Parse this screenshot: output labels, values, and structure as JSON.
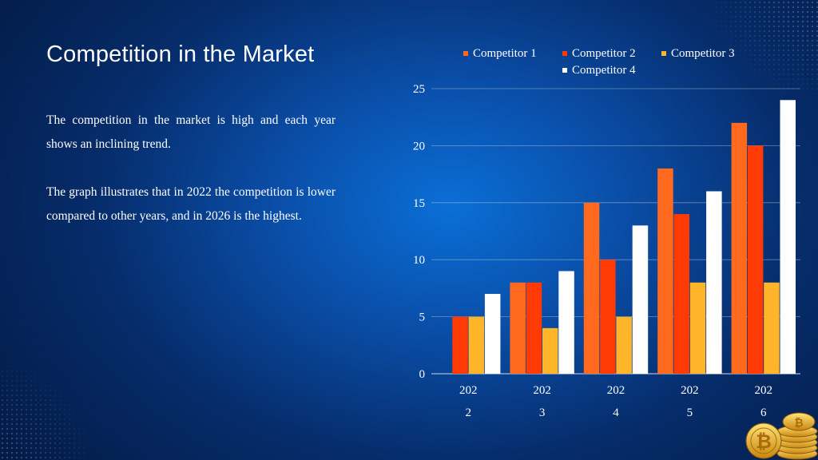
{
  "slide": {
    "title": "Competition in the Market",
    "paragraphs": [
      "The competition in the market is high and each year shows an inclining trend.",
      "The graph illustrates that in 2022 the competition is lower compared to other years, and in 2026 is the highest."
    ]
  },
  "colors": {
    "competitor_1": "#ff6a1f",
    "competitor_2": "#ff3a05",
    "competitor_3": "#ffb52a",
    "competitor_4": "#ffffff",
    "gridline": "#b9c8dc",
    "text": "#ffffff"
  },
  "decor": {
    "coins_icon": "bitcoin-coin-stack-icon"
  },
  "chart_data": {
    "type": "bar",
    "title": "",
    "xlabel": "",
    "ylabel": "",
    "categories": [
      "2022",
      "2023",
      "2024",
      "2025",
      "2026"
    ],
    "ylim": [
      0,
      25
    ],
    "yticks": [
      0,
      5,
      10,
      15,
      20,
      25
    ],
    "grid": true,
    "legend_position": "top",
    "series": [
      {
        "name": "Competitor 1",
        "values": [
          0,
          8,
          15,
          18,
          22
        ]
      },
      {
        "name": "Competitor 2",
        "values": [
          5,
          8,
          10,
          14,
          20
        ]
      },
      {
        "name": "Competitor 3",
        "values": [
          5,
          4,
          5,
          8,
          8
        ]
      },
      {
        "name": "Competitor 4",
        "values": [
          7,
          9,
          13,
          16,
          24
        ]
      }
    ]
  }
}
